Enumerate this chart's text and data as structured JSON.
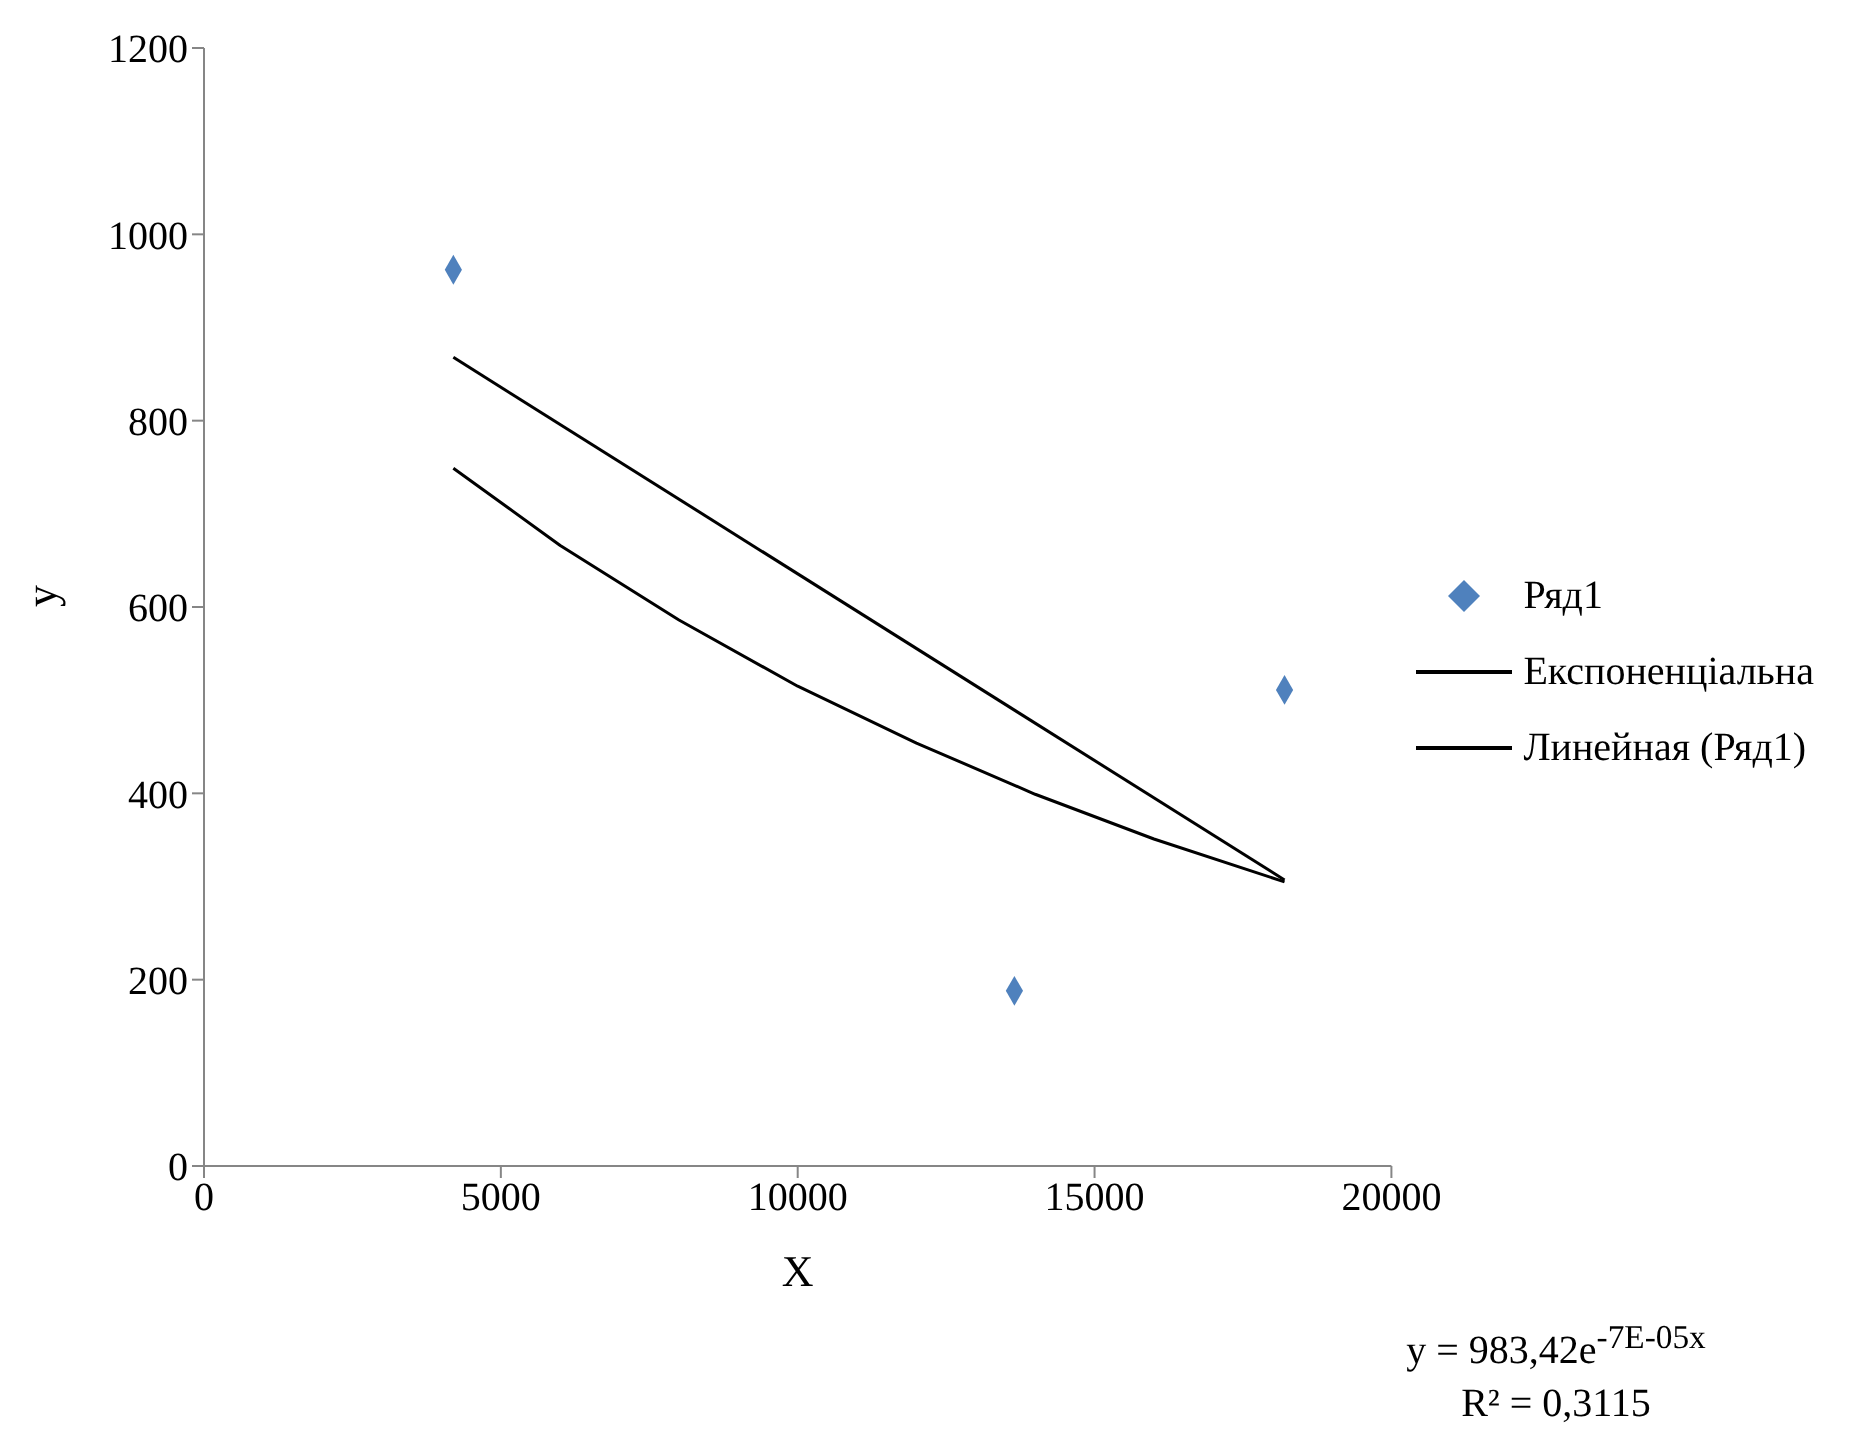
{
  "chart_data": {
    "type": "scatter",
    "xlabel": "X",
    "ylabel": "y",
    "xlim": [
      0,
      20000
    ],
    "xticks": [
      0,
      5000,
      10000,
      15000,
      20000
    ],
    "ylim": [
      0,
      1200
    ],
    "yticks": [
      0,
      200,
      400,
      600,
      800,
      1000,
      1200
    ],
    "grid": false,
    "legend": "right",
    "series": [
      {
        "name": "Ряд1",
        "marker": "diamond",
        "color": "#4f81bd",
        "x": [
          4200,
          13650,
          18200
        ],
        "values": [
          962,
          188,
          511
        ]
      },
      {
        "name": "Експоненціальна",
        "type": "line",
        "color": "#000000",
        "x": [
          4200,
          6000,
          8000,
          10000,
          12000,
          14000,
          16000,
          18200
        ],
        "values": [
          749,
          666,
          586,
          515,
          454,
          399,
          351,
          305
        ]
      },
      {
        "name": "Линейная (Ряд1)",
        "type": "line",
        "color": "#000000",
        "x": [
          4200,
          18200
        ],
        "values": [
          868,
          307
        ]
      }
    ],
    "annotations": [
      "y = 983,42e$^{-7E-05x}$",
      "R² = 0,3115"
    ]
  }
}
